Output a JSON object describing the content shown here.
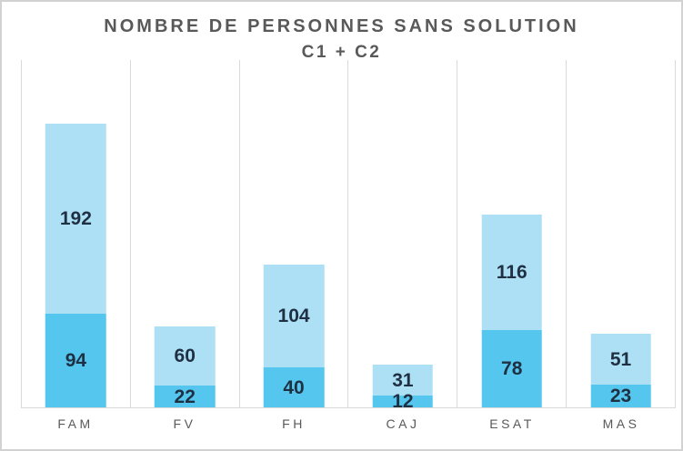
{
  "window": {
    "background": "#ffffff",
    "border_color": "#d2d2d2"
  },
  "chart": {
    "title_line1": "NOMBRE DE PERSONNES SANS SOLUTION",
    "title_line2": "C1 + C2",
    "title_color": "#595959"
  },
  "chart_data": {
    "type": "bar",
    "stacked": true,
    "title": "NOMBRE DE PERSONNES SANS SOLUTION C1 + C2",
    "categories": [
      "FAM",
      "FV",
      "FH",
      "CAJ",
      "ESAT",
      "MAS"
    ],
    "series": [
      {
        "name": "bottom-segment",
        "color": "#55c6ee",
        "values": [
          94,
          22,
          40,
          12,
          78,
          23
        ]
      },
      {
        "name": "top-segment",
        "color": "#aee0f5",
        "values": [
          192,
          60,
          104,
          31,
          116,
          51
        ]
      }
    ],
    "data_labels": true,
    "label_color": "#1f3043",
    "ylim": [
      0,
      350
    ],
    "legend_position": "none",
    "gridlines": "vertical-category-only",
    "gridline_color": "#d9d9d9",
    "axis_line_color": "#d9d9d9",
    "category_label_color": "#595959"
  }
}
